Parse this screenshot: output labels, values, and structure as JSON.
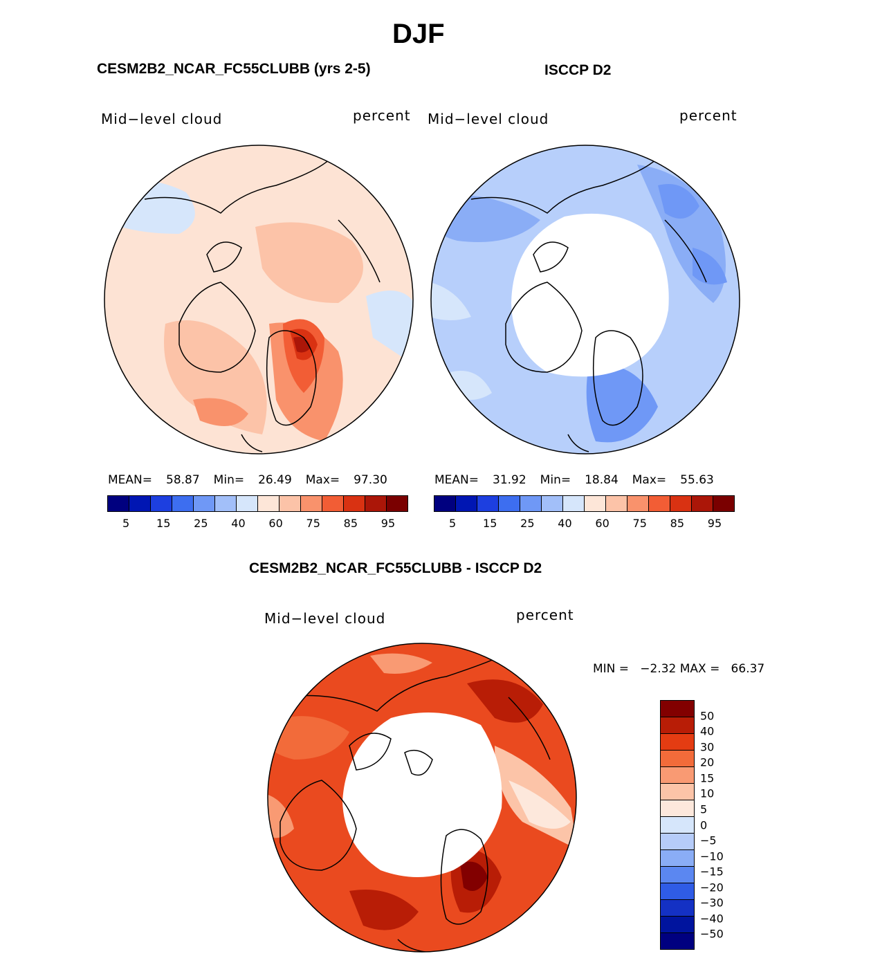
{
  "title": "DJF",
  "panels": {
    "model": {
      "subtitle": "CESM2B2_NCAR_FC55CLUBB (yrs 2-5)",
      "variable": "Mid−level cloud",
      "units": "percent",
      "mean_label": "MEAN=",
      "mean": "58.87",
      "min_label": "Min=",
      "min": "26.49",
      "max_label": "Max=",
      "max": "97.30",
      "base_color": "#fde3d4"
    },
    "obs": {
      "subtitle": "ISCCP D2",
      "variable": "Mid−level cloud",
      "units": "percent",
      "mean_label": "MEAN=",
      "mean": "31.92",
      "min_label": "Min=",
      "min": "18.84",
      "max_label": "Max=",
      "max": "55.63",
      "base_color": "#b7cffb"
    },
    "diff": {
      "subtitle": "CESM2B2_NCAR_FC55CLUBB - ISCCP D2",
      "variable": "Mid−level cloud",
      "units": "percent",
      "minmax_text": "MIN =   −2.32 MAX =   66.37",
      "base_color": "#ea4a1f"
    }
  },
  "colorbar_main": {
    "colors": [
      "#00007f",
      "#0016b3",
      "#1d3fe0",
      "#3d6ef0",
      "#6f98f6",
      "#a2bff9",
      "#d6e6fb",
      "#fde6d8",
      "#fcc3a8",
      "#f9926c",
      "#f25d35",
      "#d93212",
      "#ab1608",
      "#7a0000"
    ],
    "ticks": [
      "5",
      "15",
      "25",
      "40",
      "60",
      "75",
      "85",
      "95"
    ]
  },
  "colorbar_diff": {
    "colors": [
      "#820000",
      "#b81d06",
      "#e43c12",
      "#f26b3a",
      "#f99a73",
      "#fcc4a8",
      "#fde8dc",
      "#d6e6fb",
      "#b6ccf9",
      "#8aadf6",
      "#5b87f1",
      "#2f5ce6",
      "#1431c4",
      "#00149e",
      "#000080"
    ],
    "ticks": [
      "50",
      "40",
      "30",
      "20",
      "15",
      "10",
      "5",
      "0",
      "−5",
      "−10",
      "−15",
      "−20",
      "−30",
      "−40",
      "−50"
    ]
  }
}
